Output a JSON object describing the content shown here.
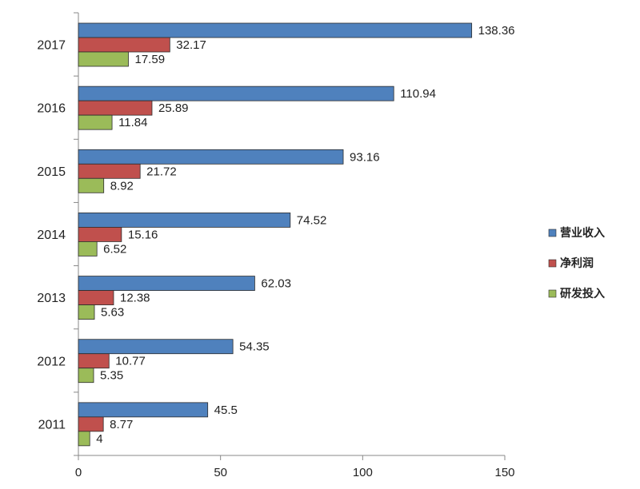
{
  "chart_data": {
    "type": "bar",
    "orientation": "horizontal",
    "categories": [
      "2011",
      "2012",
      "2013",
      "2014",
      "2015",
      "2016",
      "2017"
    ],
    "series": [
      {
        "name": "营业收入",
        "color": "#4F81BD",
        "values": [
          45.5,
          54.35,
          62.03,
          74.52,
          93.16,
          110.94,
          138.36
        ]
      },
      {
        "name": "净利润",
        "color": "#C0504D",
        "values": [
          8.77,
          10.77,
          12.38,
          15.16,
          21.72,
          25.89,
          32.17
        ]
      },
      {
        "name": "研发投入",
        "color": "#9BBB59",
        "values": [
          4,
          5.35,
          5.63,
          6.52,
          8.92,
          11.84,
          17.59
        ]
      }
    ],
    "value_labels": [
      [
        "45.5",
        "54.35",
        "62.03",
        "74.52",
        "93.16",
        "110.94",
        "138.36"
      ],
      [
        "8.77",
        "10.77",
        "12.38",
        "15.16",
        "21.72",
        "25.89",
        "32.17"
      ],
      [
        "4",
        "5.35",
        "5.63",
        "6.52",
        "8.92",
        "11.84",
        "17.59"
      ]
    ],
    "x_ticks": [
      "0",
      "50",
      "100",
      "150"
    ],
    "xlim": [
      0,
      150
    ],
    "title": "",
    "xlabel": "",
    "ylabel": "",
    "grid": false,
    "legend_position": "right"
  }
}
